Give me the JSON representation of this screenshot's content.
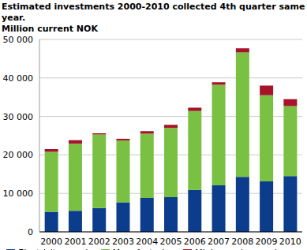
{
  "chart_data": {
    "type": "bar",
    "title": "Estimated investments 2000-2010 collected 4th quarter same year.",
    "subtitle": "Million current NOK",
    "categories": [
      "2000",
      "2001",
      "2002",
      "2003",
      "2004",
      "2005",
      "2006",
      "2007",
      "2008",
      "2009",
      "2010"
    ],
    "series": [
      {
        "name": "Electricity supply",
        "color": "#0b3d8c",
        "values": [
          5200,
          5500,
          6200,
          7700,
          8800,
          9000,
          10900,
          12100,
          14300,
          13100,
          14500
        ]
      },
      {
        "name": "Manufacturing",
        "color": "#7ac143",
        "values": [
          15600,
          17400,
          19100,
          16000,
          16700,
          18000,
          20500,
          26100,
          32300,
          22400,
          18200
        ]
      },
      {
        "name": "Mining and quarrying",
        "color": "#a5142a",
        "values": [
          700,
          900,
          300,
          500,
          700,
          800,
          900,
          700,
          1100,
          2500,
          1800
        ]
      }
    ],
    "ylim": [
      0,
      50000
    ],
    "yticks": [
      0,
      {
        "value": 10000,
        "label": "10 000"
      },
      {
        "value": 20000,
        "label": "20 000"
      },
      {
        "value": 30000,
        "label": "30 000"
      },
      {
        "value": 40000,
        "label": "40 000"
      },
      {
        "value": 50000,
        "label": "50 000"
      }
    ],
    "stacked": true,
    "grid": true,
    "legend": "bottom"
  }
}
